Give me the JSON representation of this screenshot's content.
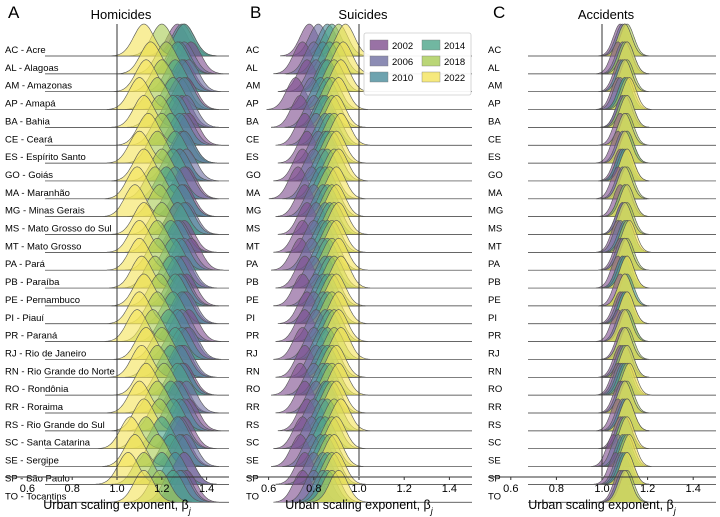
{
  "chart_data": [
    {
      "type": "ridgeline",
      "panel_label": "A",
      "title": "Homicides",
      "xlabel": "Urban scaling exponent, β",
      "xlabel_subscript": "j",
      "xlim": [
        0.5,
        1.5
      ],
      "xticks": [
        "0.6",
        "0.8",
        "1.0",
        "1.2",
        "1.4"
      ],
      "reference_line": 1.0,
      "rows": [
        "AC - Acre",
        "AL - Alagoas",
        "AM - Amazonas",
        "AP - Amapá",
        "BA - Bahia",
        "CE - Ceará",
        "ES - Espírito Santo",
        "GO - Goiás",
        "MA - Maranhão",
        "MG - Minas Gerais",
        "MS - Mato Grosso do Sul",
        "MT - Mato Grosso",
        "PA - Pará",
        "PB - Paraíba",
        "PE - Pernambuco",
        "PI - Piauí",
        "PR - Paraná",
        "RJ - Rio de Janeiro",
        "RN - Rio Grande do Norte",
        "RO - Rondônia",
        "RR - Roraima",
        "RS - Rio Grande do Sul",
        "SC - Santa Catarina",
        "SE - Sergipe",
        "SP - São Paulo",
        "TO - Tocantins"
      ],
      "series_order": [
        "2002",
        "2006",
        "2010",
        "2014",
        "2018",
        "2022"
      ],
      "peaks": [
        [
          1.27,
          1.3,
          1.29,
          1.3,
          1.2,
          1.12
        ],
        [
          1.33,
          1.3,
          1.28,
          1.27,
          1.22,
          1.15
        ],
        [
          1.3,
          1.32,
          1.29,
          1.26,
          1.2,
          1.13
        ],
        [
          1.31,
          1.28,
          1.3,
          1.25,
          1.18,
          1.1
        ],
        [
          1.29,
          1.31,
          1.27,
          1.25,
          1.19,
          1.12
        ],
        [
          1.32,
          1.3,
          1.28,
          1.24,
          1.2,
          1.14
        ],
        [
          1.3,
          1.29,
          1.3,
          1.26,
          1.18,
          1.1
        ],
        [
          1.28,
          1.31,
          1.28,
          1.25,
          1.2,
          1.12
        ],
        [
          1.31,
          1.3,
          1.26,
          1.22,
          1.17,
          1.09
        ],
        [
          1.3,
          1.29,
          1.29,
          1.25,
          1.19,
          1.08
        ],
        [
          1.27,
          1.31,
          1.3,
          1.27,
          1.2,
          1.12
        ],
        [
          1.3,
          1.28,
          1.27,
          1.24,
          1.18,
          1.1
        ],
        [
          1.33,
          1.3,
          1.28,
          1.25,
          1.18,
          1.1
        ],
        [
          1.29,
          1.3,
          1.27,
          1.24,
          1.17,
          1.11
        ],
        [
          1.31,
          1.29,
          1.28,
          1.26,
          1.19,
          1.12
        ],
        [
          1.3,
          1.31,
          1.29,
          1.25,
          1.18,
          1.1
        ],
        [
          1.32,
          1.29,
          1.27,
          1.23,
          1.16,
          1.09
        ],
        [
          1.31,
          1.32,
          1.29,
          1.26,
          1.2,
          1.13
        ],
        [
          1.29,
          1.3,
          1.28,
          1.24,
          1.18,
          1.11
        ],
        [
          1.3,
          1.29,
          1.29,
          1.27,
          1.21,
          1.13
        ],
        [
          1.28,
          1.31,
          1.27,
          1.24,
          1.18,
          1.1
        ],
        [
          1.32,
          1.3,
          1.28,
          1.25,
          1.19,
          1.12
        ],
        [
          1.3,
          1.28,
          1.27,
          1.2,
          1.13,
          1.06
        ],
        [
          1.29,
          1.31,
          1.28,
          1.24,
          1.18,
          1.08
        ],
        [
          1.3,
          1.3,
          1.26,
          1.2,
          1.12,
          1.05
        ],
        [
          1.31,
          1.29,
          1.28,
          1.25,
          1.19,
          1.12
        ]
      ],
      "peak_width": 0.045
    },
    {
      "type": "ridgeline",
      "panel_label": "B",
      "title": "Suicides",
      "xlabel": "Urban scaling exponent, β",
      "xlabel_subscript": "j",
      "xlim": [
        0.5,
        1.5
      ],
      "xticks": [
        "0.6",
        "0.8",
        "1.0",
        "1.2",
        "1.4"
      ],
      "reference_line": 1.0,
      "rows": [
        "AC",
        "AL",
        "AM",
        "AP",
        "BA",
        "CE",
        "ES",
        "GO",
        "MA",
        "MG",
        "MS",
        "MT",
        "PA",
        "PB",
        "PE",
        "PI",
        "PR",
        "RJ",
        "RN",
        "RO",
        "RR",
        "RS",
        "SC",
        "SE",
        "SP",
        "TO"
      ],
      "series_order": [
        "2002",
        "2006",
        "2010",
        "2014",
        "2018",
        "2022"
      ],
      "peaks": [
        [
          0.78,
          0.82,
          0.86,
          0.88,
          0.91,
          0.94
        ],
        [
          0.75,
          0.8,
          0.84,
          0.87,
          0.9,
          0.93
        ],
        [
          0.77,
          0.81,
          0.85,
          0.86,
          0.89,
          0.92
        ],
        [
          0.72,
          0.79,
          0.83,
          0.86,
          0.88,
          0.91
        ],
        [
          0.74,
          0.8,
          0.84,
          0.85,
          0.88,
          0.9
        ],
        [
          0.76,
          0.81,
          0.85,
          0.87,
          0.89,
          0.92
        ],
        [
          0.77,
          0.82,
          0.85,
          0.86,
          0.88,
          0.9
        ],
        [
          0.75,
          0.8,
          0.84,
          0.86,
          0.89,
          0.91
        ],
        [
          0.73,
          0.79,
          0.83,
          0.85,
          0.87,
          0.9
        ],
        [
          0.76,
          0.8,
          0.84,
          0.86,
          0.88,
          0.9
        ],
        [
          0.77,
          0.81,
          0.85,
          0.87,
          0.89,
          0.91
        ],
        [
          0.75,
          0.8,
          0.84,
          0.86,
          0.88,
          0.9
        ],
        [
          0.74,
          0.79,
          0.84,
          0.86,
          0.88,
          0.91
        ],
        [
          0.76,
          0.8,
          0.85,
          0.87,
          0.89,
          0.92
        ],
        [
          0.75,
          0.81,
          0.84,
          0.86,
          0.88,
          0.9
        ],
        [
          0.77,
          0.8,
          0.84,
          0.86,
          0.88,
          0.91
        ],
        [
          0.76,
          0.81,
          0.85,
          0.87,
          0.89,
          0.91
        ],
        [
          0.75,
          0.8,
          0.84,
          0.86,
          0.89,
          0.92
        ],
        [
          0.76,
          0.81,
          0.84,
          0.86,
          0.88,
          0.9
        ],
        [
          0.74,
          0.8,
          0.84,
          0.86,
          0.88,
          0.91
        ],
        [
          0.76,
          0.81,
          0.85,
          0.86,
          0.88,
          0.9
        ],
        [
          0.77,
          0.8,
          0.84,
          0.86,
          0.89,
          0.92
        ],
        [
          0.75,
          0.79,
          0.83,
          0.85,
          0.88,
          0.9
        ],
        [
          0.74,
          0.79,
          0.83,
          0.85,
          0.87,
          0.89
        ],
        [
          0.76,
          0.8,
          0.84,
          0.86,
          0.88,
          0.9
        ],
        [
          0.75,
          0.8,
          0.84,
          0.86,
          0.88,
          0.91
        ]
      ],
      "peak_width": 0.04
    },
    {
      "type": "ridgeline",
      "panel_label": "C",
      "title": "Accidents",
      "xlabel": "Urban scaling exponent, β",
      "xlabel_subscript": "j",
      "xlim": [
        0.5,
        1.5
      ],
      "xticks": [
        "0.6",
        "0.8",
        "1.0",
        "1.2",
        "1.4"
      ],
      "reference_line": 1.0,
      "rows": [
        "AC",
        "AL",
        "AM",
        "AP",
        "BA",
        "CE",
        "ES",
        "GO",
        "MA",
        "MG",
        "MS",
        "MT",
        "PA",
        "PB",
        "PE",
        "PI",
        "PR",
        "RJ",
        "RN",
        "RO",
        "RR",
        "RS",
        "SC",
        "SE",
        "SP",
        "TO"
      ],
      "series_order": [
        "2002",
        "2006",
        "2010",
        "2014",
        "2018",
        "2022"
      ],
      "peaks": [
        [
          1.08,
          1.09,
          1.1,
          1.1,
          1.11,
          1.1
        ],
        [
          1.07,
          1.09,
          1.1,
          1.11,
          1.1,
          1.11
        ],
        [
          1.08,
          1.1,
          1.09,
          1.1,
          1.11,
          1.1
        ],
        [
          1.07,
          1.08,
          1.1,
          1.1,
          1.11,
          1.12
        ],
        [
          1.09,
          1.09,
          1.1,
          1.11,
          1.1,
          1.11
        ],
        [
          1.08,
          1.1,
          1.1,
          1.1,
          1.11,
          1.1
        ],
        [
          1.07,
          1.09,
          1.1,
          1.11,
          1.11,
          1.1
        ],
        [
          1.08,
          1.09,
          1.09,
          1.1,
          1.11,
          1.11
        ],
        [
          1.07,
          1.09,
          1.1,
          1.1,
          1.11,
          1.1
        ],
        [
          1.08,
          1.1,
          1.1,
          1.11,
          1.1,
          1.11
        ],
        [
          1.09,
          1.09,
          1.1,
          1.1,
          1.11,
          1.1
        ],
        [
          1.07,
          1.08,
          1.1,
          1.11,
          1.11,
          1.12
        ],
        [
          1.08,
          1.09,
          1.1,
          1.1,
          1.11,
          1.1
        ],
        [
          1.07,
          1.09,
          1.09,
          1.1,
          1.11,
          1.11
        ],
        [
          1.08,
          1.1,
          1.1,
          1.11,
          1.1,
          1.1
        ],
        [
          1.08,
          1.09,
          1.1,
          1.1,
          1.11,
          1.11
        ],
        [
          1.07,
          1.09,
          1.1,
          1.11,
          1.11,
          1.1
        ],
        [
          1.09,
          1.1,
          1.1,
          1.1,
          1.11,
          1.1
        ],
        [
          1.08,
          1.09,
          1.1,
          1.11,
          1.1,
          1.11
        ],
        [
          1.07,
          1.08,
          1.09,
          1.1,
          1.11,
          1.12
        ],
        [
          1.08,
          1.09,
          1.1,
          1.1,
          1.11,
          1.1
        ],
        [
          1.07,
          1.09,
          1.1,
          1.11,
          1.11,
          1.11
        ],
        [
          1.08,
          1.09,
          1.1,
          1.1,
          1.1,
          1.11
        ],
        [
          1.05,
          1.07,
          1.09,
          1.1,
          1.11,
          1.12
        ],
        [
          1.06,
          1.08,
          1.09,
          1.1,
          1.11,
          1.11
        ],
        [
          1.08,
          1.09,
          1.1,
          1.1,
          1.11,
          1.1
        ]
      ],
      "peak_width": 0.03
    }
  ],
  "legend": {
    "location": "top-right of panel B",
    "entries": [
      {
        "label": "2002",
        "color": "#7f4f8f"
      },
      {
        "label": "2006",
        "color": "#6f6fa1"
      },
      {
        "label": "2010",
        "color": "#4a8c9b"
      },
      {
        "label": "2014",
        "color": "#4da58a"
      },
      {
        "label": "2018",
        "color": "#a9cc55"
      },
      {
        "label": "2022",
        "color": "#f4e35c"
      }
    ]
  },
  "colors": {
    "2002": "#7f4f8f",
    "2006": "#6f6fa1",
    "2010": "#4a8c9b",
    "2014": "#4da58a",
    "2018": "#a9cc55",
    "2022": "#f4e35c",
    "outline": "#555555"
  }
}
